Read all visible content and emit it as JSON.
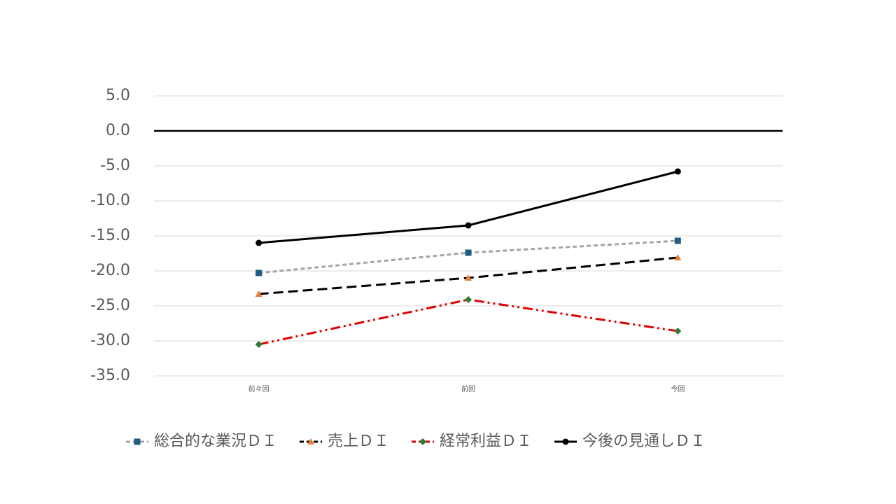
{
  "chart_data": {
    "type": "line",
    "categories": [
      "前々回",
      "前回",
      "今回"
    ],
    "series": [
      {
        "name": "総合的な業況ＤＩ",
        "color": "#a5a5a5",
        "marker_color": "#1f5c82",
        "marker": "square",
        "dash": "6 4",
        "values": [
          -20.3,
          -17.4,
          -15.7
        ]
      },
      {
        "name": "売上ＤＩ",
        "color": "#000000",
        "marker_color": "#ed7d31",
        "marker": "triangle",
        "dash": "14 7",
        "values": [
          -23.3,
          -21.0,
          -18.1
        ]
      },
      {
        "name": "経常利益ＤＩ",
        "color": "#e00000",
        "marker_color": "#2e7d32",
        "marker": "diamond",
        "dash": "14 5 3 5 3 5",
        "values": [
          -30.5,
          -24.1,
          -28.6
        ]
      },
      {
        "name": "今後の見通しＤＩ",
        "color": "#000000",
        "marker_color": "#000000",
        "marker": "circle",
        "dash": "none",
        "values": [
          -16.0,
          -13.5,
          -5.8
        ]
      }
    ],
    "ylim": [
      -35,
      5
    ],
    "yticks": [
      {
        "value": 5,
        "label": "5.0"
      },
      {
        "value": 0,
        "label": "0.0"
      },
      {
        "value": -5,
        "label": "-5.0"
      },
      {
        "value": -10,
        "label": "-10.0"
      },
      {
        "value": -15,
        "label": "-15.0"
      },
      {
        "value": -20,
        "label": "-20.0"
      },
      {
        "value": -25,
        "label": "-25.0"
      },
      {
        "value": -30,
        "label": "-30.0"
      },
      {
        "value": -35,
        "label": "-35.0"
      }
    ],
    "grid": true
  }
}
